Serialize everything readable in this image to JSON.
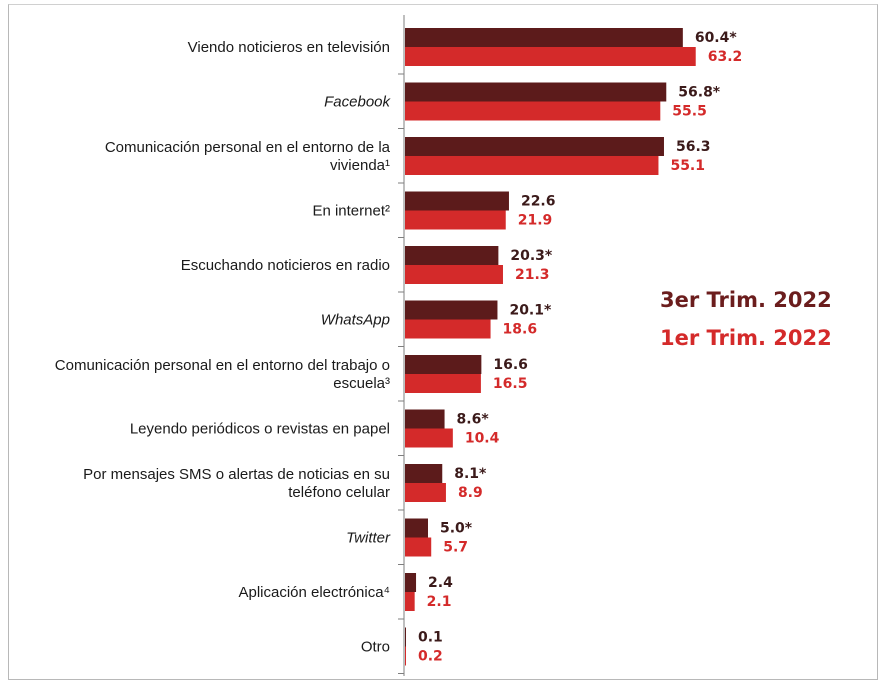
{
  "chart_data": {
    "type": "bar",
    "orientation": "horizontal",
    "categories": [
      {
        "lines": [
          "Viendo noticieros en televisión"
        ],
        "italic": false
      },
      {
        "lines": [
          "Facebook"
        ],
        "italic": true
      },
      {
        "lines": [
          "Comunicación personal en el entorno de la",
          "vivienda¹"
        ],
        "italic": false
      },
      {
        "lines": [
          "En internet²"
        ],
        "italic": false
      },
      {
        "lines": [
          "Escuchando noticieros en radio"
        ],
        "italic": false
      },
      {
        "lines": [
          "WhatsApp"
        ],
        "italic": true
      },
      {
        "lines": [
          "Comunicación personal en el entorno del trabajo o",
          "escuela³"
        ],
        "italic": false
      },
      {
        "lines": [
          "Leyendo periódicos o revistas en papel"
        ],
        "italic": false
      },
      {
        "lines": [
          "Por mensajes SMS o alertas de noticias en su",
          "teléfono celular"
        ],
        "italic": false
      },
      {
        "lines": [
          "Twitter"
        ],
        "italic": true
      },
      {
        "lines": [
          "Aplicación electrónica⁴"
        ],
        "italic": false
      },
      {
        "lines": [
          "Otro"
        ],
        "italic": false
      }
    ],
    "series": [
      {
        "name": "3er Trim. 2022",
        "color": "#5c1b1b",
        "values": [
          60.4,
          56.8,
          56.3,
          22.6,
          20.3,
          20.1,
          16.6,
          8.6,
          8.1,
          5.0,
          2.4,
          0.1
        ],
        "labels": [
          "60.4*",
          "56.8*",
          "56.3",
          "22.6",
          "20.3*",
          "20.1*",
          "16.6",
          "8.6*",
          "8.1*",
          "5.0*",
          "2.4",
          "0.1"
        ]
      },
      {
        "name": "1er Trim. 2022",
        "color": "#d42a2a",
        "values": [
          63.2,
          55.5,
          55.1,
          21.9,
          21.3,
          18.6,
          16.5,
          10.4,
          8.9,
          5.7,
          2.1,
          0.2
        ],
        "labels": [
          "63.2",
          "55.5",
          "55.1",
          "21.9",
          "21.3",
          "18.6",
          "16.5",
          "10.4",
          "8.9",
          "5.7",
          "2.1",
          "0.2"
        ]
      }
    ],
    "legend_position": "right",
    "grid": false
  }
}
